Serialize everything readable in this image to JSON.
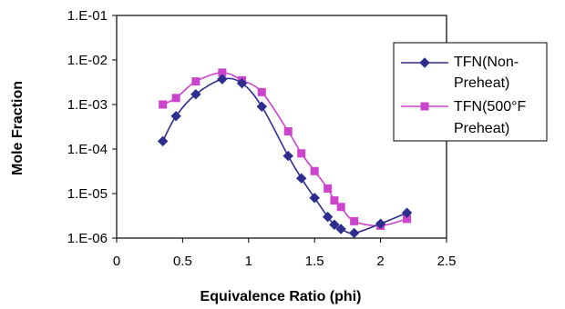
{
  "chart_data": {
    "type": "line",
    "title": "",
    "xlabel": "Equivalence Ratio (phi)",
    "ylabel": "Mole Fraction",
    "xlim": [
      0,
      2.5
    ],
    "ylim": [
      1e-06,
      0.1
    ],
    "yscale": "log",
    "grid": false,
    "legend_position": "right",
    "x_ticks": [
      "0",
      "0.5",
      "1",
      "1.5",
      "2",
      "2.5"
    ],
    "y_ticks": [
      "1.E-06",
      "1.E-05",
      "1.E-04",
      "1.E-03",
      "1.E-02",
      "1.E-01"
    ],
    "series": [
      {
        "name_lines": [
          "TFN(Non-",
          "Preheat)"
        ],
        "color": "#2e2e8e",
        "marker": "diamond",
        "x": [
          0.35,
          0.45,
          0.6,
          0.8,
          0.95,
          1.1,
          1.3,
          1.4,
          1.5,
          1.6,
          1.65,
          1.7,
          1.8,
          2.0,
          2.2
        ],
        "y": [
          0.00015,
          0.00055,
          0.0017,
          0.0037,
          0.003,
          0.0009,
          7e-05,
          2.2e-05,
          8e-06,
          3e-06,
          2e-06,
          1.6e-06,
          1.3e-06,
          2.1e-06,
          3.7e-06
        ]
      },
      {
        "name_lines": [
          "TFN(500°F",
          "Preheat)"
        ],
        "color": "#cc44cc",
        "marker": "square",
        "x": [
          0.35,
          0.45,
          0.6,
          0.8,
          0.95,
          1.1,
          1.3,
          1.4,
          1.5,
          1.6,
          1.65,
          1.7,
          1.8,
          2.0,
          2.2
        ],
        "y": [
          0.001,
          0.0014,
          0.0033,
          0.0052,
          0.0035,
          0.0019,
          0.00025,
          8e-05,
          3.2e-05,
          1.3e-05,
          7e-06,
          5e-06,
          2.4e-06,
          1.9e-06,
          2.7e-06
        ]
      }
    ]
  }
}
